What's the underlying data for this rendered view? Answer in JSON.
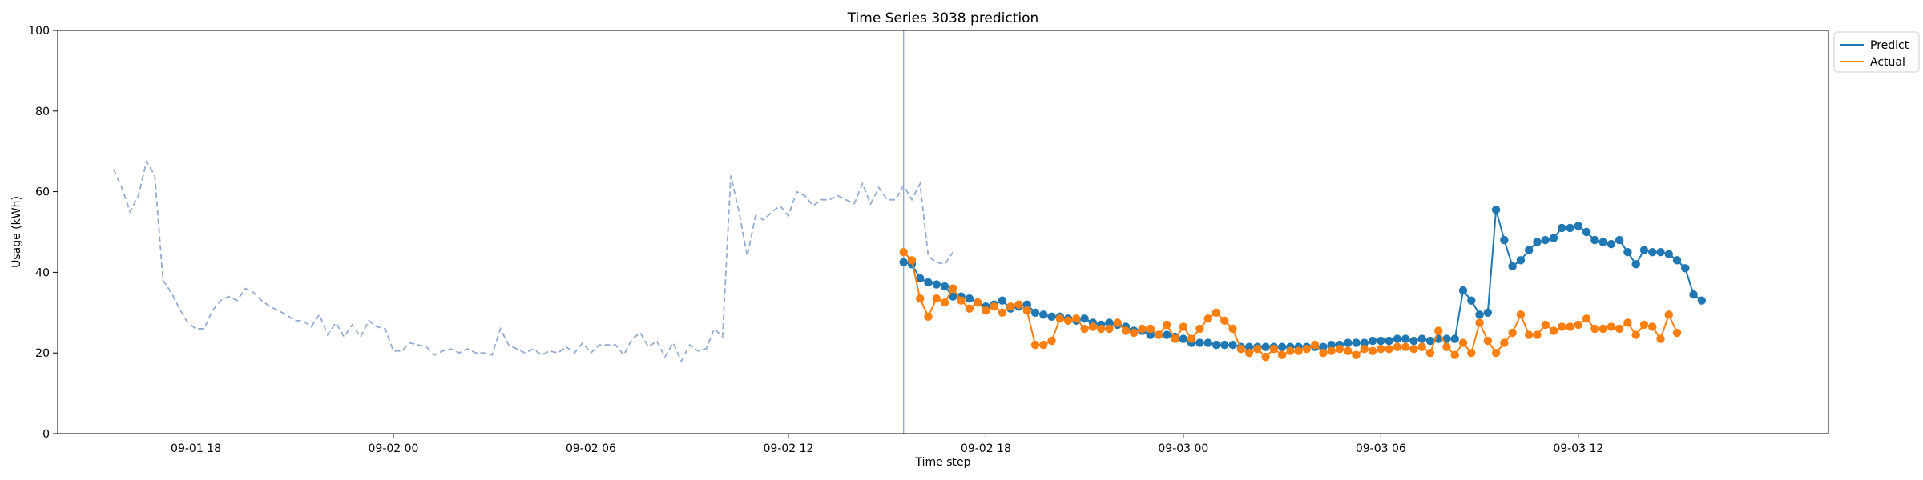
{
  "chart_data": {
    "type": "line",
    "title": "Time Series 3038 prediction",
    "xlabel": "Time step",
    "ylabel": "Usage (kWh)",
    "ylim": [
      0,
      100
    ],
    "yticks": [
      0,
      20,
      40,
      60,
      80,
      100
    ],
    "xlim": [
      "2023-09-01 13:48",
      "2023-09-03 19:36"
    ],
    "xticks": [
      {
        "t": "2023-09-01 18:00",
        "label": "09-01 18"
      },
      {
        "t": "2023-09-02 00:00",
        "label": "09-02 00"
      },
      {
        "t": "2023-09-02 06:00",
        "label": "09-02 06"
      },
      {
        "t": "2023-09-02 12:00",
        "label": "09-02 12"
      },
      {
        "t": "2023-09-02 18:00",
        "label": "09-02 18"
      },
      {
        "t": "2023-09-03 00:00",
        "label": "09-03 00"
      },
      {
        "t": "2023-09-03 06:00",
        "label": "09-03 06"
      },
      {
        "t": "2023-09-03 12:00",
        "label": "09-03 12"
      }
    ],
    "grid": false,
    "legend_position": "top-right (outside)",
    "forecast_start": "2023-09-02 15:30",
    "history": {
      "style": "dashed",
      "color": "#94acd0",
      "start": "2023-09-01 15:30",
      "step_minutes": 15,
      "values": [
        65.5,
        61,
        55,
        59,
        67.5,
        64,
        38,
        35,
        31,
        27.5,
        26,
        26,
        30.5,
        33,
        34,
        33,
        36,
        35,
        33,
        31.5,
        30.5,
        29.5,
        28,
        28,
        26.5,
        29.5,
        24.5,
        27.5,
        24,
        27,
        24,
        28,
        26.5,
        26,
        20.5,
        20.5,
        22.5,
        22,
        21.5,
        19.5,
        20.5,
        21,
        20,
        21,
        20,
        20,
        19.5,
        26,
        22,
        21,
        20,
        21,
        19.5,
        20.5,
        20,
        21.5,
        20,
        22.5,
        20,
        22,
        22,
        22,
        19.5,
        23.5,
        25,
        21.5,
        23,
        19,
        22.5,
        18,
        22,
        20.5,
        21,
        26,
        24,
        64,
        55,
        44,
        54,
        53,
        55,
        56.5,
        54,
        60,
        59,
        56.5,
        58,
        58,
        59,
        58,
        57,
        62,
        57,
        61,
        58,
        58,
        61.5,
        58,
        62,
        44,
        42.5,
        42,
        45
      ]
    },
    "series": [
      {
        "name": "Predict",
        "color": "#1f77b4",
        "start": "2023-09-02 15:30",
        "step_minutes": 15,
        "values": [
          42.5,
          42,
          38.5,
          37.5,
          37,
          36.5,
          34,
          34,
          33.5,
          32.5,
          31.5,
          32,
          33,
          31,
          31.5,
          32,
          30,
          29.5,
          29,
          29,
          28.5,
          28,
          28.5,
          27.5,
          27,
          27.5,
          27,
          26.5,
          25.5,
          25.5,
          24.5,
          24.5,
          24.5,
          24,
          23.5,
          22.5,
          22.5,
          22.5,
          22,
          22,
          22,
          21.5,
          21.5,
          21.5,
          21.5,
          21.5,
          21.5,
          21.5,
          21.5,
          21.5,
          21.5,
          21.5,
          22,
          22,
          22.5,
          22.5,
          22.5,
          23,
          23,
          23,
          23.5,
          23.5,
          23,
          23.5,
          23,
          23.5,
          23.5,
          23.5,
          35.5,
          33,
          29.5,
          30,
          55.5,
          48,
          41.5,
          43,
          45.5,
          47.5,
          48,
          48.5,
          51,
          51,
          51.5,
          50,
          48,
          47.5,
          47,
          48,
          45,
          42,
          45.5,
          45,
          45,
          44.5,
          43,
          41,
          34.5,
          33
        ]
      },
      {
        "name": "Actual",
        "color": "#ff7f0e",
        "start": "2023-09-02 15:30",
        "step_minutes": 15,
        "values": [
          45,
          43,
          33.5,
          29,
          33.5,
          32.5,
          36,
          33,
          31,
          32.5,
          30.5,
          31.5,
          30,
          31.5,
          32,
          30.5,
          22,
          22,
          23,
          28.5,
          28,
          28.5,
          26,
          26.5,
          26,
          26,
          27.5,
          25.5,
          25,
          26,
          26,
          24.5,
          27,
          23.5,
          26.5,
          23.5,
          26,
          28.5,
          30,
          28,
          26,
          21,
          20,
          21,
          19,
          21,
          19.5,
          20.5,
          20.5,
          21,
          22,
          20,
          20.5,
          21,
          20.5,
          19.5,
          21,
          20.5,
          21,
          21,
          21.5,
          21.5,
          21,
          21.5,
          20,
          25.5,
          21.5,
          19.5,
          22.5,
          20,
          27.5,
          23,
          20,
          22.5,
          25,
          29.5,
          24.5,
          24.5,
          27,
          25.5,
          26.5,
          26.5,
          27,
          28.5,
          26,
          26,
          26.5,
          26,
          27.5,
          24.5,
          27,
          26.5,
          23.5,
          29.5,
          25
        ]
      }
    ]
  }
}
